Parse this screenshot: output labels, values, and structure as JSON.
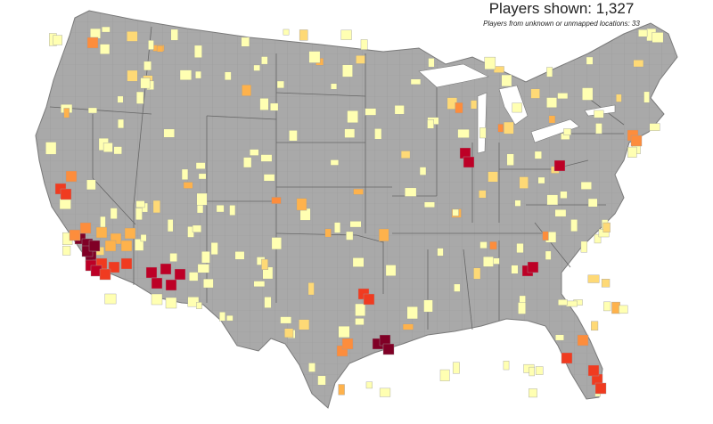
{
  "header": {
    "players_label": "Players shown:",
    "players_count": "1,327",
    "unknown_label": "Players from unknown or unmapped locations: 33"
  },
  "colors": {
    "land": "#a9a9a9",
    "county_border": "#9d9d9d",
    "state_border": "#666666",
    "background": "#ffffff",
    "scale": [
      "#ffffb2",
      "#fed976",
      "#feb24c",
      "#fd8d3c",
      "#f03b20",
      "#bd0026",
      "#800026"
    ]
  },
  "map": {
    "region": "United States (contiguous), county-level choropleth",
    "highlighted_counties": [
      {
        "area": "Los Angeles, CA",
        "level": 6
      },
      {
        "area": "San Bernardino, CA",
        "level": 2
      },
      {
        "area": "Riverside, CA",
        "level": 4
      },
      {
        "area": "Orange, CA",
        "level": 5
      },
      {
        "area": "San Diego, CA",
        "level": 4
      },
      {
        "area": "Kern, CA",
        "level": 3
      },
      {
        "area": "Maricopa, AZ",
        "level": 5
      },
      {
        "area": "Pima, AZ",
        "level": 0
      },
      {
        "area": "Harris, TX",
        "level": 6
      },
      {
        "area": "Dallas, TX",
        "level": 4
      },
      {
        "area": "Bexar, TX",
        "level": 3
      },
      {
        "area": "Cook, IL",
        "level": 5
      },
      {
        "area": "Fulton, GA",
        "level": 5
      },
      {
        "area": "Miami-Dade, FL",
        "level": 4
      },
      {
        "area": "Broward, FL",
        "level": 4
      },
      {
        "area": "Hillsborough, FL",
        "level": 4
      },
      {
        "area": "Orange, FL",
        "level": 3
      },
      {
        "area": "Allegheny, PA",
        "level": 5
      },
      {
        "area": "King, WA",
        "level": 3
      },
      {
        "area": "Alameda, CA",
        "level": 4
      },
      {
        "area": "Sacramento, CA",
        "level": 3
      },
      {
        "area": "New York, NY",
        "level": 3
      }
    ]
  }
}
